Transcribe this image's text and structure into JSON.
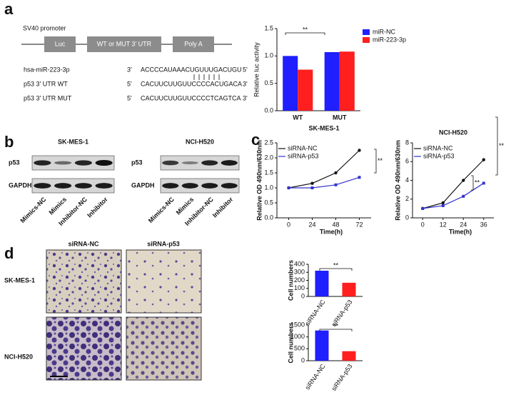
{
  "panels": {
    "a": {
      "letter": "a",
      "promoter": "SV40 promoter",
      "boxes": [
        "Luc",
        "WT or MUT 3' UTR",
        "Poly A"
      ],
      "sequences": [
        {
          "label": "hsa-miR-223-3p",
          "left": "3'",
          "seq": "ACCCCAUAAACUGUUUGACUGU",
          "right": "5'"
        },
        {
          "label": "p53 3' UTR WT",
          "left": "5'",
          "seq": "CACUUCUUGUUCCCCACUGACA",
          "right": "3'"
        },
        {
          "label": "p53 3' UTR MUT",
          "left": "5'",
          "seq": "CACUUCUUGUUCCCCTCAGTCA",
          "right": "3'"
        }
      ]
    },
    "b": {
      "letter": "b",
      "blots": [
        {
          "title": "SK-MES-1",
          "rows": [
            "p53",
            "GAPDH"
          ]
        },
        {
          "title": "NCI-H520",
          "rows": [
            "p53",
            "GAPDH"
          ]
        }
      ],
      "lanes": [
        "Mimics-NC",
        "Mimics",
        "Inhibitor-NC",
        "Inhibitor"
      ]
    },
    "c": {
      "letter": "c"
    },
    "d": {
      "letter": "d",
      "columns": [
        "siRNA-NC",
        "siRNA-p53"
      ],
      "rows": [
        "SK-MES-1",
        "NCI-H520"
      ]
    }
  },
  "chart_data": [
    {
      "type": "bar",
      "ylabel": "Relative luc activity",
      "categories": [
        "WT",
        "MUT"
      ],
      "series": [
        {
          "name": "miR-NC",
          "color": "#1f1fff",
          "values": [
            1.0,
            1.07
          ]
        },
        {
          "name": "miR-223-3p",
          "color": "#ff1f1f",
          "values": [
            0.75,
            1.08
          ]
        }
      ],
      "ylim": [
        0,
        1.5
      ],
      "yticks": [
        {
          "value": 0,
          "label": "0.0"
        },
        {
          "value": 0.5,
          "label": "0.5"
        },
        {
          "value": 1,
          "label": "1.0"
        },
        {
          "value": 1.5,
          "label": "1.5"
        }
      ],
      "legend": "upper right",
      "annotations": [
        "**"
      ]
    },
    {
      "type": "line",
      "title": "SK-MES-1",
      "xlabel": "Time(h)",
      "ylabel": "Relative OD 490nm/630nm",
      "x": [
        0,
        24,
        48,
        72
      ],
      "xlim": [
        -12,
        84
      ],
      "xticks": [
        0,
        24,
        48,
        72
      ],
      "series": [
        {
          "name": "siRNA-NC",
          "color": "#111111",
          "values": [
            1.0,
            1.15,
            1.5,
            2.25
          ]
        },
        {
          "name": "siRNA-p53",
          "color": "#3333cc",
          "values": [
            1.0,
            1.0,
            1.1,
            1.35
          ]
        }
      ],
      "ylim": [
        0,
        2.5
      ],
      "yticks": [
        {
          "value": 0,
          "label": "0.0"
        },
        {
          "value": 0.5,
          "label": "0.5"
        },
        {
          "value": 1,
          "label": "1.0"
        },
        {
          "value": 1.5,
          "label": "1.5"
        },
        {
          "value": 2,
          "label": "2.0"
        },
        {
          "value": 2.5,
          "label": "2.5"
        }
      ],
      "legend": "upper left",
      "annotations": [
        "**"
      ]
    },
    {
      "type": "line",
      "title": "NCI-H520",
      "xlabel": "Time(h)",
      "ylabel": "Relative OD 490nm/630nm",
      "x": [
        0,
        12,
        24,
        36
      ],
      "xlim": [
        -6,
        42
      ],
      "xticks": [
        0,
        12,
        24,
        36
      ],
      "series": [
        {
          "name": "siRNA-NC",
          "color": "#111111",
          "values": [
            1.0,
            1.6,
            4.0,
            6.2
          ]
        },
        {
          "name": "siRNA-p53",
          "color": "#3333cc",
          "values": [
            1.0,
            1.3,
            2.3,
            3.7
          ]
        }
      ],
      "ylim": [
        0,
        8
      ],
      "yticks": [
        0,
        2,
        4,
        6,
        8
      ],
      "legend": "upper left",
      "annotations": [
        "**",
        "**"
      ]
    },
    {
      "type": "bar",
      "ylabel": "Cell numbers",
      "categories": [
        "siRNA-NC",
        "siRNA-p53"
      ],
      "values": [
        320,
        170
      ],
      "colors": [
        "#1f1fff",
        "#ff1f1f"
      ],
      "ylim": [
        0,
        400
      ],
      "yticks": [
        0,
        100,
        200,
        300,
        400
      ],
      "annotations": [
        "**"
      ]
    },
    {
      "type": "bar",
      "ylabel": "Cell numbers",
      "categories": [
        "siRNA-NC",
        "siRNA-p53"
      ],
      "values": [
        1270,
        400
      ],
      "colors": [
        "#1f1fff",
        "#ff1f1f"
      ],
      "ylim": [
        0,
        1500
      ],
      "yticks": [
        0,
        500,
        1000,
        1500
      ],
      "annotations": [
        "**"
      ]
    }
  ]
}
